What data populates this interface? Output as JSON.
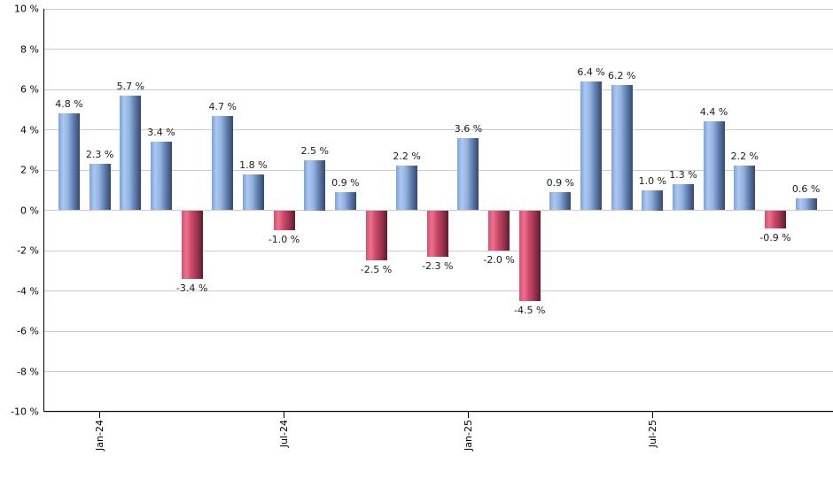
{
  "chart_data": {
    "type": "bar",
    "title": "",
    "xlabel": "",
    "ylabel": "",
    "ylim": [
      -10,
      10
    ],
    "y_tick_step": 2,
    "grid": true,
    "legend": null,
    "bars": [
      {
        "value": 4.8,
        "label": "4.8 %"
      },
      {
        "value": 2.3,
        "label": "2.3 %"
      },
      {
        "value": 5.7,
        "label": "5.7 %"
      },
      {
        "value": 3.4,
        "label": "3.4 %"
      },
      {
        "value": -3.4,
        "label": "-3.4 %"
      },
      {
        "value": 4.7,
        "label": "4.7 %"
      },
      {
        "value": 1.8,
        "label": "1.8 %"
      },
      {
        "value": -1.0,
        "label": "-1.0 %"
      },
      {
        "value": 2.5,
        "label": "2.5 %"
      },
      {
        "value": 0.9,
        "label": "0.9 %"
      },
      {
        "value": -2.5,
        "label": "-2.5 %"
      },
      {
        "value": 2.2,
        "label": "2.2 %"
      },
      {
        "value": -2.3,
        "label": "-2.3 %"
      },
      {
        "value": 3.6,
        "label": "3.6 %"
      },
      {
        "value": -2.0,
        "label": "-2.0 %"
      },
      {
        "value": -4.5,
        "label": "-4.5 %"
      },
      {
        "value": 0.9,
        "label": "0.9 %"
      },
      {
        "value": 6.4,
        "label": "6.4 %"
      },
      {
        "value": 6.2,
        "label": "6.2 %"
      },
      {
        "value": 1.0,
        "label": "1.0 %"
      },
      {
        "value": 1.3,
        "label": "1.3 %"
      },
      {
        "value": 4.4,
        "label": "4.4 %"
      },
      {
        "value": 2.2,
        "label": "2.2 %"
      },
      {
        "value": -0.9,
        "label": "-0.9 %"
      },
      {
        "value": 0.6,
        "label": "0.6 %"
      }
    ],
    "x_ticks": [
      {
        "label": "Jan-24",
        "bar_index": 1
      },
      {
        "label": "Jul-24",
        "bar_index": 7
      },
      {
        "label": "Jan-25",
        "bar_index": 13
      },
      {
        "label": "Jul-25",
        "bar_index": 19
      }
    ],
    "y_ticks": [
      {
        "value": 10,
        "label": "10 %"
      },
      {
        "value": 8,
        "label": "8 %"
      },
      {
        "value": 6,
        "label": "6 %"
      },
      {
        "value": 4,
        "label": "4 %"
      },
      {
        "value": 2,
        "label": "2 %"
      },
      {
        "value": 0,
        "label": "0 %"
      },
      {
        "value": -2,
        "label": "-2 %"
      },
      {
        "value": -4,
        "label": "-4 %"
      },
      {
        "value": -6,
        "label": "-6 %"
      },
      {
        "value": -8,
        "label": "-8 %"
      },
      {
        "value": -10,
        "label": "-10 %"
      }
    ],
    "colors": {
      "positive_gradient": [
        "#7ea2d8",
        "#abc8f0",
        "#93b2e0",
        "#5e7bac",
        "#33496f"
      ],
      "negative_gradient": [
        "#d6506f",
        "#ec7290",
        "#cc4a68",
        "#9b3450",
        "#5f1b2e"
      ],
      "gridline": "#cccccc",
      "axis": "#000000",
      "label_text": "#1a1a1a",
      "background": "#ffffff"
    }
  }
}
